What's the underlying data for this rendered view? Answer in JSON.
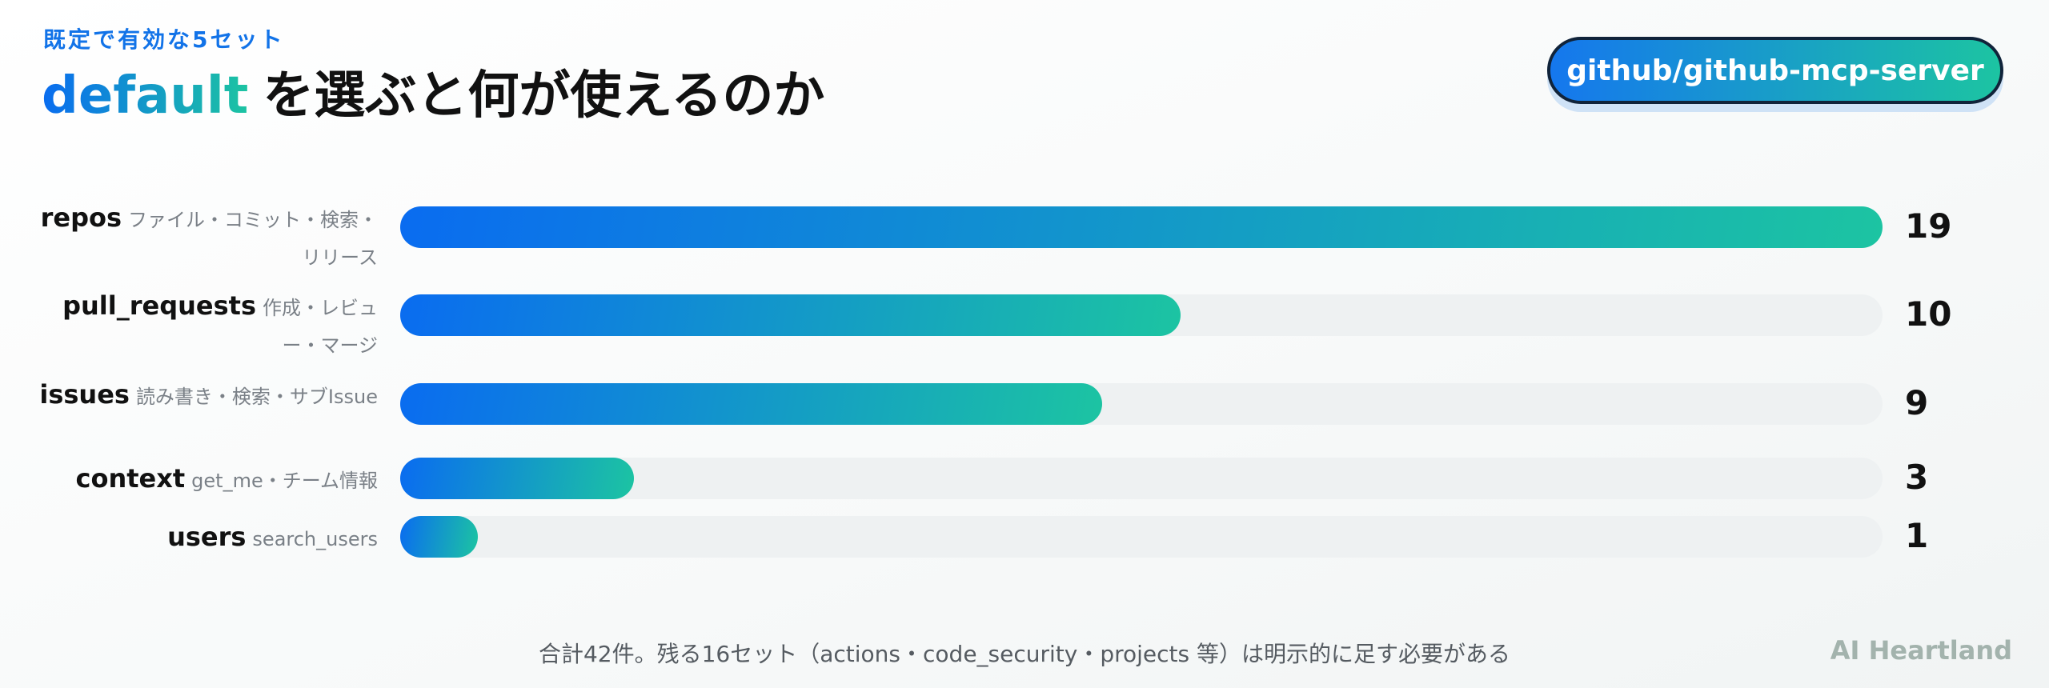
{
  "chart_data": {
    "type": "bar",
    "subtitle": "既定で有効な5セット",
    "title_keyword": "default",
    "title": "を選ぶと何が使えるのか",
    "badge": "github/github-mcp-server",
    "categories": [
      "repos",
      "pull_requests",
      "issues",
      "context",
      "users"
    ],
    "descriptions": [
      "ファイル・コミット・検索・リリース",
      "作成・レビュー・マージ",
      "読み書き・検索・サブIssue",
      "get_me・チーム情報",
      "search_users"
    ],
    "values": [
      19,
      10,
      9,
      3,
      1
    ],
    "colors": [
      "#0a6cf0",
      "#1cc4a2"
    ],
    "xlim": [
      0,
      19
    ],
    "note": "合計42件。残る16セット（actions・code_security・projects 等）は明示的に足す必要がある",
    "brand": "AI Heartland"
  }
}
